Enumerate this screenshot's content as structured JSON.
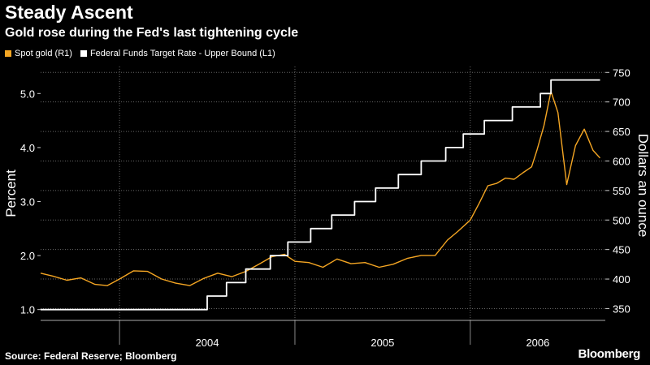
{
  "chart_data": {
    "type": "line",
    "title": "Steady Ascent",
    "subtitle": "Gold rose during the Fed's last tightening cycle",
    "source": "Source: Federal Reserve; Bloomberg",
    "brand": "Bloomberg",
    "legend": {
      "placement": "top-left"
    },
    "left_axis": {
      "label": "Percent",
      "lim": [
        0.8,
        5.5
      ],
      "ticks": [
        "1.0",
        "2.0",
        "3.0",
        "4.0",
        "5.0"
      ]
    },
    "right_axis": {
      "label": "Dollars an ounce",
      "lim": [
        330,
        760
      ],
      "ticks": [
        "350",
        "400",
        "450",
        "500",
        "550",
        "600",
        "650",
        "700",
        "750"
      ]
    },
    "x_axis": {
      "years": [
        "2004",
        "2005",
        "2006"
      ],
      "lim": [
        2003.55,
        2006.77
      ]
    },
    "grid": true,
    "series": [
      {
        "name": "Spot gold (R1)",
        "axis": "right",
        "color": "#f5a623",
        "x": [
          2003.55,
          2003.62,
          2003.7,
          2003.78,
          2003.86,
          2003.93,
          2004.0,
          2004.08,
          2004.16,
          2004.24,
          2004.32,
          2004.4,
          2004.48,
          2004.56,
          2004.64,
          2004.72,
          2004.8,
          2004.87,
          2004.94,
          2005.0,
          2005.08,
          2005.16,
          2005.24,
          2005.32,
          2005.4,
          2005.48,
          2005.56,
          2005.64,
          2005.72,
          2005.8,
          2005.87,
          2005.93,
          2006.0,
          2006.05,
          2006.1,
          2006.15,
          2006.2,
          2006.25,
          2006.3,
          2006.35,
          2006.38,
          2006.42,
          2006.46,
          2006.5,
          2006.55,
          2006.6,
          2006.65,
          2006.7,
          2006.74
        ],
        "y": [
          410,
          405,
          398,
          402,
          391,
          389,
          400,
          414,
          413,
          400,
          393,
          389,
          401,
          410,
          404,
          413,
          426,
          438,
          442,
          430,
          428,
          420,
          434,
          426,
          428,
          420,
          425,
          435,
          440,
          440,
          466,
          481,
          500,
          528,
          558,
          562,
          571,
          569,
          580,
          590,
          618,
          660,
          718,
          682,
          560,
          626,
          654,
          618,
          605
        ]
      },
      {
        "name": "Federal Funds Target Rate - Upper Bound  (L1)",
        "axis": "left",
        "color": "#ffffff",
        "step": true,
        "x": [
          2003.55,
          2004.04,
          2004.5,
          2004.61,
          2004.72,
          2004.86,
          2004.96,
          2005.09,
          2005.21,
          2005.34,
          2005.46,
          2005.59,
          2005.72,
          2005.86,
          2005.96,
          2006.08,
          2006.24,
          2006.4,
          2006.46,
          2006.74
        ],
        "y": [
          1.0,
          1.0,
          1.25,
          1.5,
          1.75,
          2.0,
          2.25,
          2.5,
          2.75,
          3.0,
          3.25,
          3.5,
          3.75,
          4.0,
          4.25,
          4.5,
          4.75,
          5.0,
          5.25,
          5.25
        ]
      }
    ]
  }
}
